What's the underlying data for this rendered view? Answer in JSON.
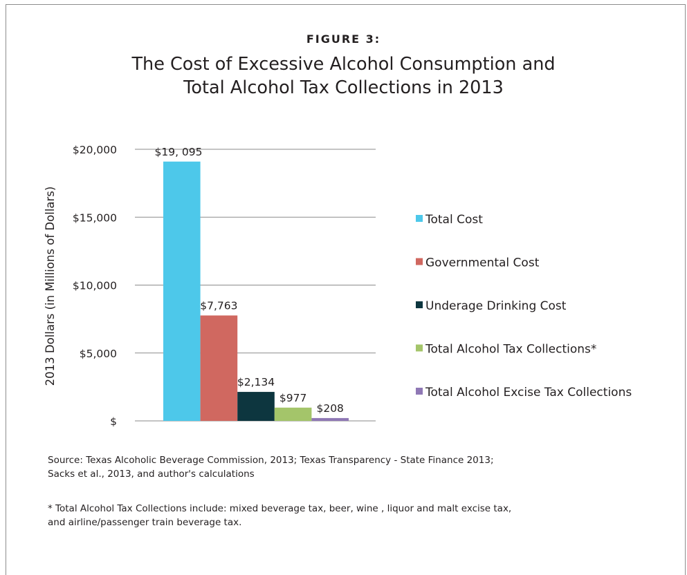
{
  "figure_label": "FIGURE 3:",
  "title_lines": [
    "The Cost of Excessive Alcohol Consumption and",
    "Total Alcohol Tax Collections in 2013"
  ],
  "chart_data": {
    "type": "bar",
    "title": "The Cost of Excessive Alcohol Consumption and Total Alcohol Tax Collections in 2013",
    "ylabel": "2013 Dollars (in Millions of Dollars)",
    "xlabel": "",
    "ylim": [
      0,
      20000
    ],
    "yticks": [
      0,
      5000,
      10000,
      15000,
      20000
    ],
    "ytick_labels": [
      "$",
      "$5,000",
      "$10,000",
      "$15,000",
      "$20,000"
    ],
    "grid": true,
    "legend_position": "right",
    "series": [
      {
        "name": "Total Cost",
        "value": 19095,
        "label": "$19, 095",
        "color": "#4dc8ea"
      },
      {
        "name": "Governmental Cost",
        "value": 7763,
        "label": "$7,763",
        "color": "#d06860"
      },
      {
        "name": "Underage Drinking Cost",
        "value": 2134,
        "label": "$2,134",
        "color": "#0d363f"
      },
      {
        "name": "Total Alcohol Tax Collections*",
        "value": 977,
        "label": "$977",
        "color": "#a4c56a"
      },
      {
        "name": "Total Alcohol Excise Tax Collections",
        "value": 208,
        "label": "$208",
        "color": "#8f78b5"
      }
    ]
  },
  "source_lines": [
    "Source: Texas Alcoholic Beverage Commission, 2013; Texas Transparency - State Finance 2013;",
    "Sacks et al., 2013, and author's calculations"
  ],
  "footnote_lines": [
    "* Total Alcohol Tax Collections include: mixed beverage tax, beer, wine , liquor and malt excise tax,",
    "and airline/passenger train beverage tax."
  ]
}
